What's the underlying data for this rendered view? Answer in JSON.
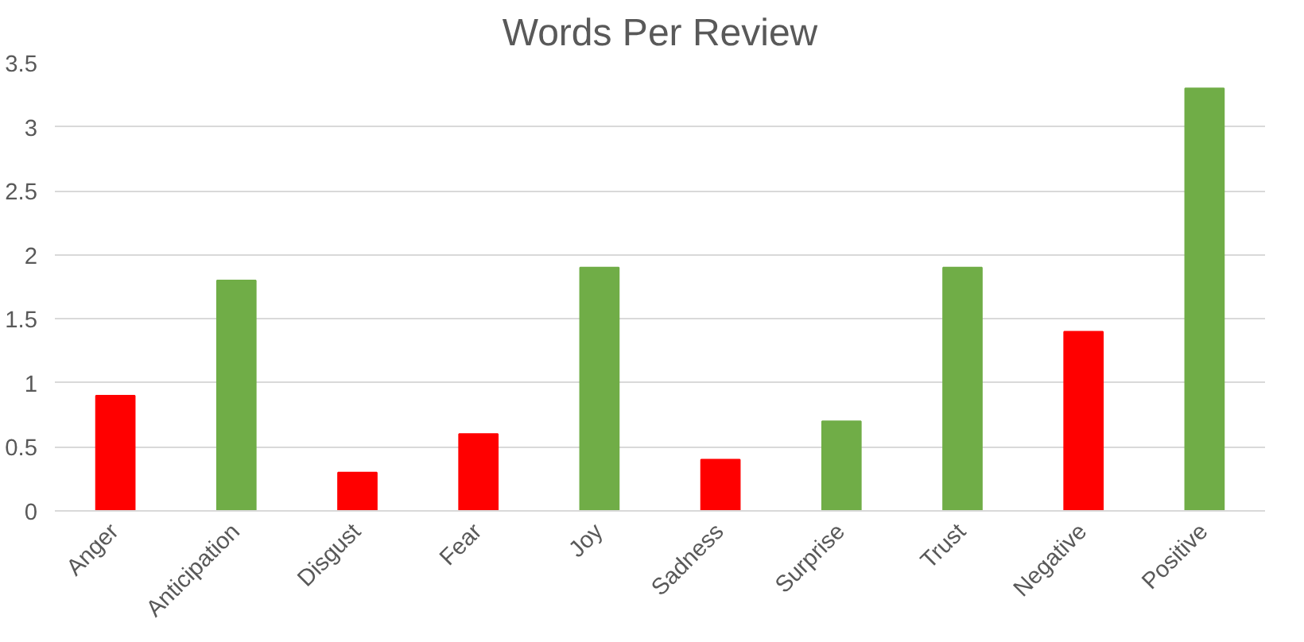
{
  "chart_data": {
    "type": "bar",
    "title": "Words Per Review",
    "categories": [
      "Anger",
      "Anticipation",
      "Disgust",
      "Fear",
      "Joy",
      "Sadness",
      "Surprise",
      "Trust",
      "Negative",
      "Positive"
    ],
    "values": [
      0.9,
      1.8,
      0.3,
      0.6,
      1.9,
      0.4,
      0.7,
      1.9,
      1.4,
      3.3
    ],
    "colors": [
      "#ff0000",
      "#70ad47",
      "#ff0000",
      "#ff0000",
      "#70ad47",
      "#ff0000",
      "#70ad47",
      "#70ad47",
      "#ff0000",
      "#70ad47"
    ],
    "ylim": [
      0,
      3.5
    ],
    "yticks": [
      0,
      0.5,
      1,
      1.5,
      2,
      2.5,
      3,
      3.5
    ],
    "grid": "y"
  }
}
